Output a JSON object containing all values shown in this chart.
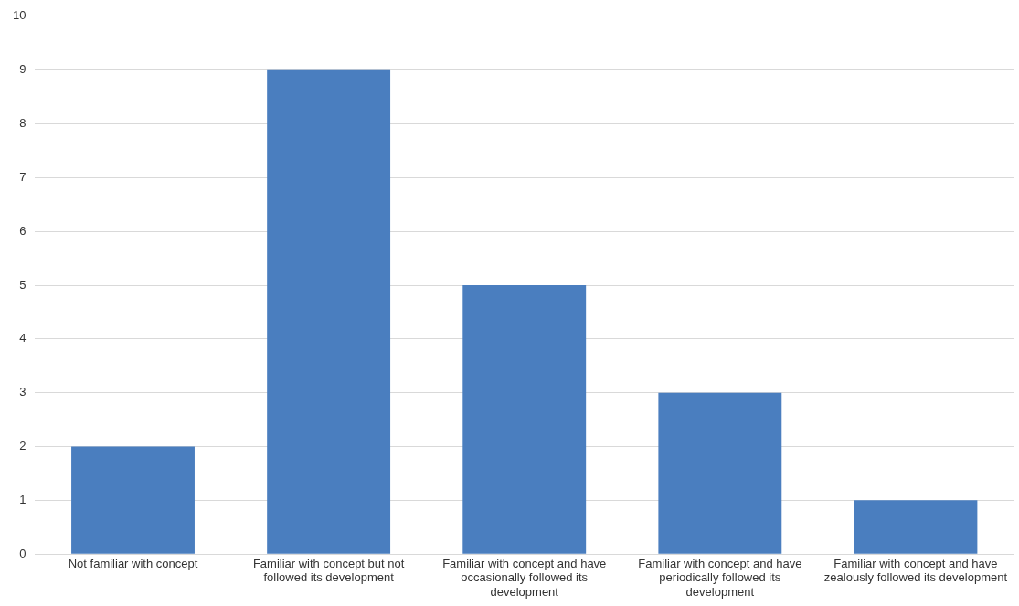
{
  "chart_data": {
    "type": "bar",
    "categories": [
      "Not familiar with concept",
      "Familiar with concept but not followed its development",
      "Familiar with concept and have occasionally followed its development",
      "Familiar with concept and have periodically followed its development",
      "Familiar with concept and have zealously followed its development"
    ],
    "values": [
      2,
      9,
      5,
      3,
      1
    ],
    "color": "#4a7ebf",
    "ylim": [
      0,
      10
    ],
    "yticks": [
      0,
      1,
      2,
      3,
      4,
      5,
      6,
      7,
      8,
      9,
      10
    ],
    "grid": "y",
    "legend": false
  }
}
